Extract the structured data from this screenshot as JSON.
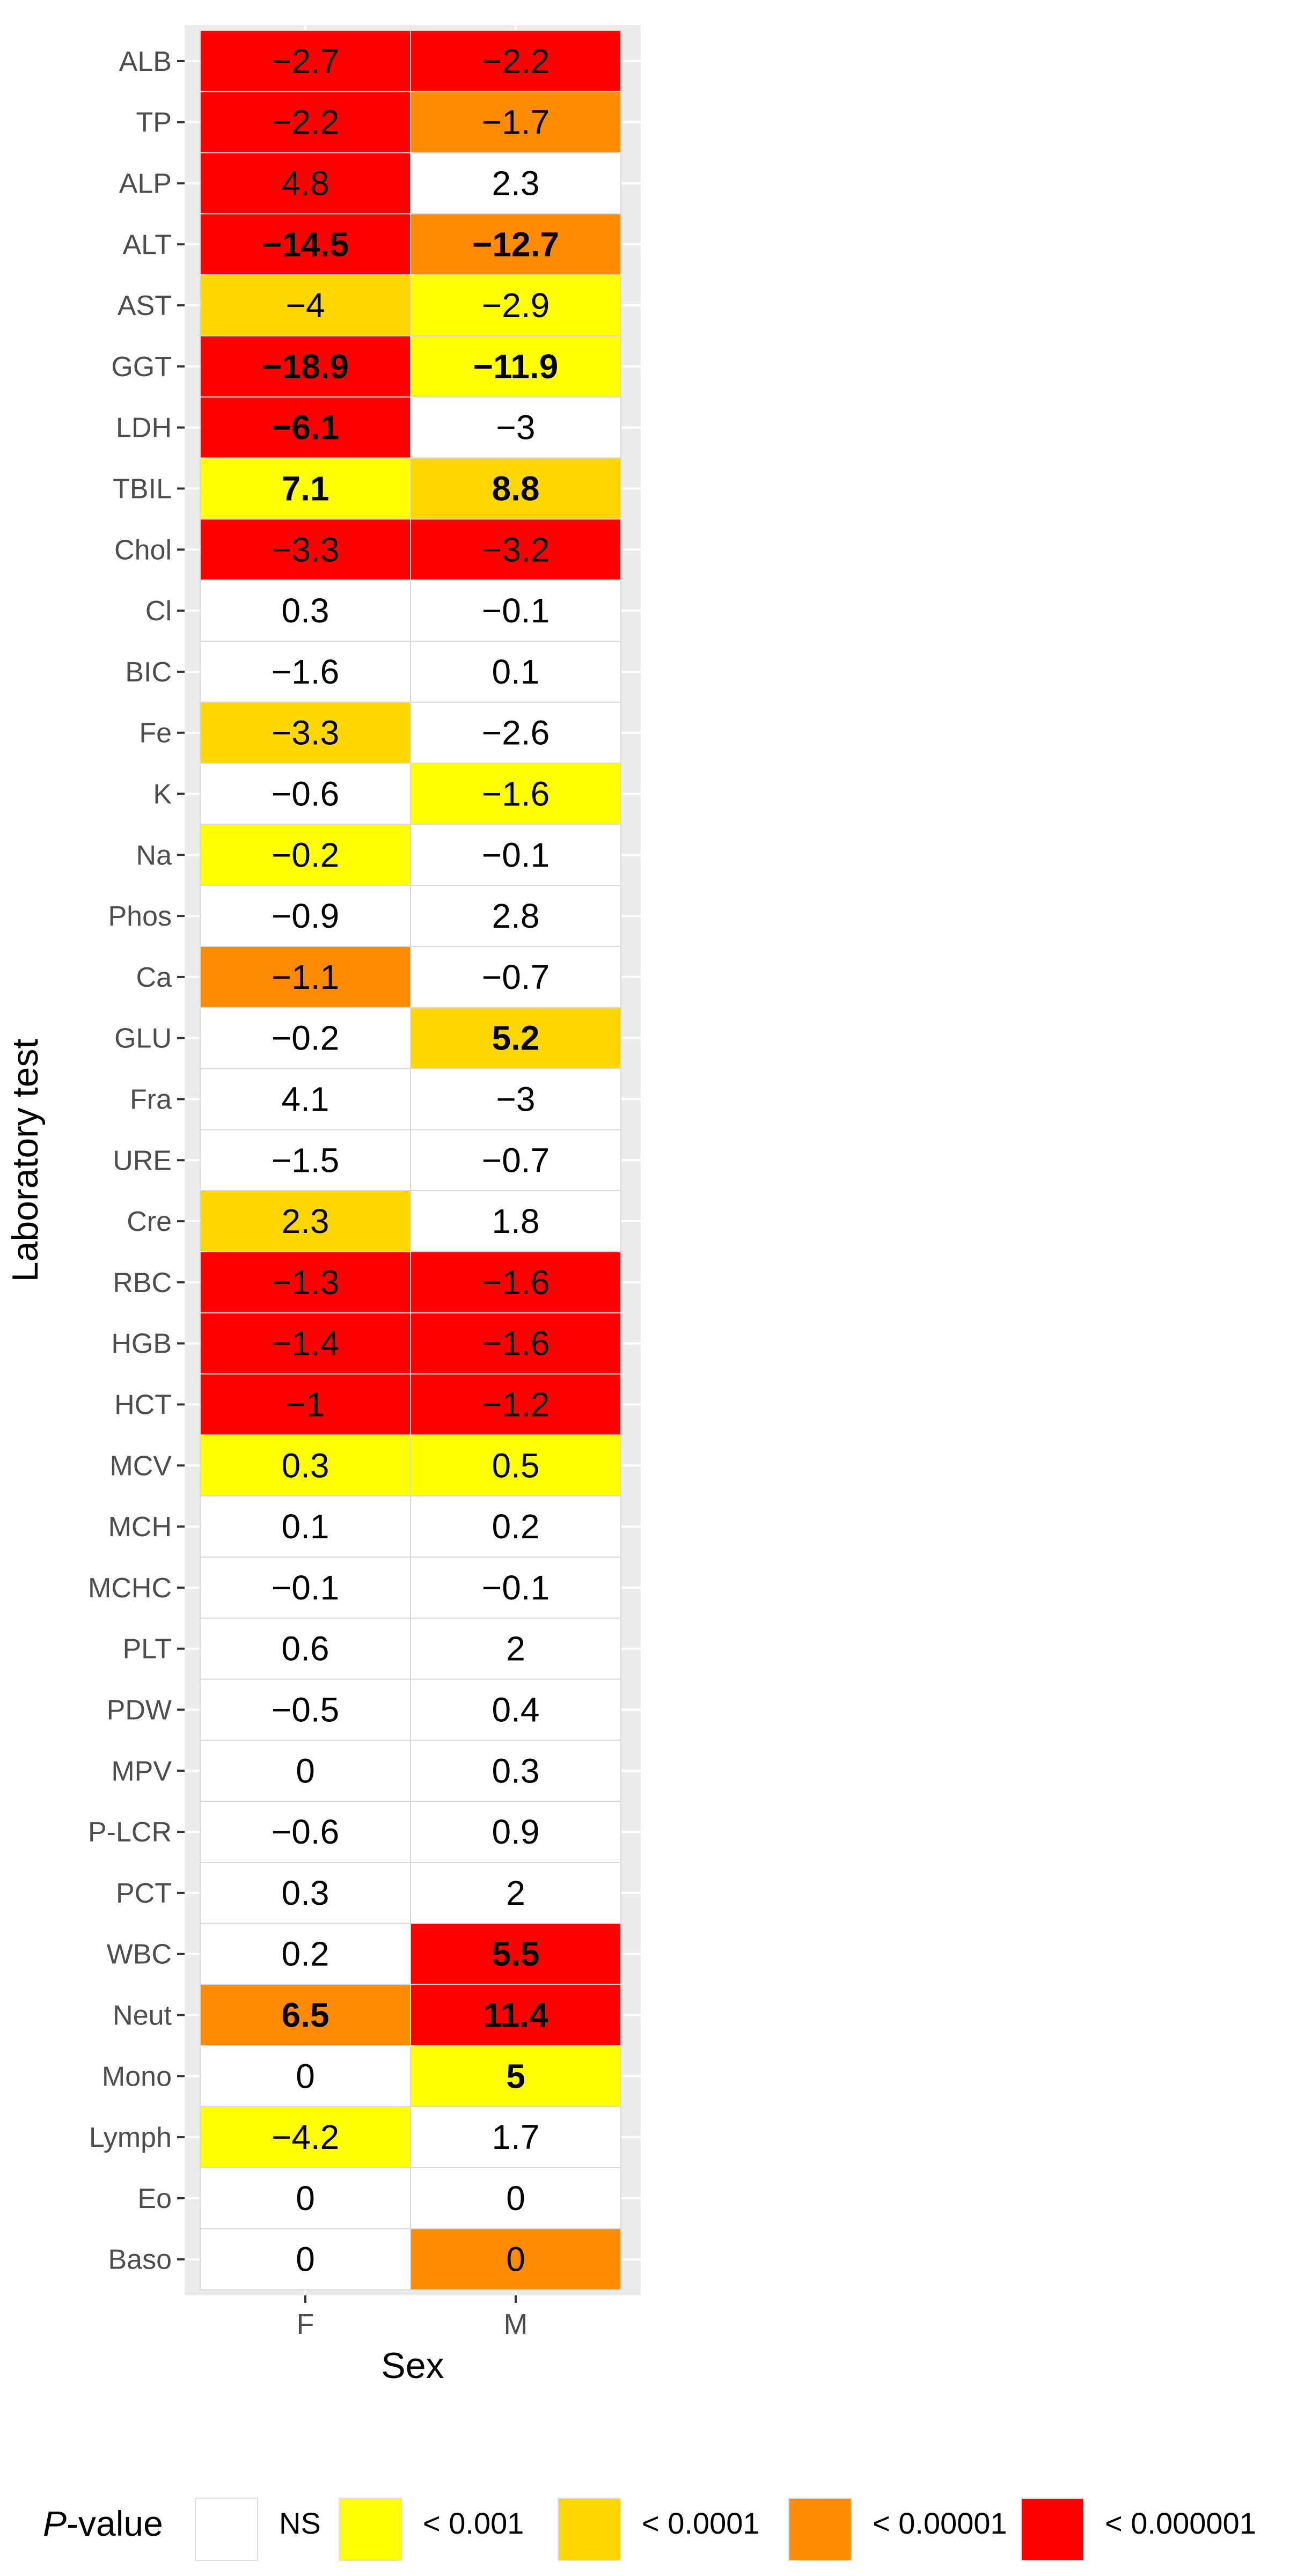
{
  "chart_data": {
    "type": "heatmap",
    "xlabel": "Sex",
    "ylabel": "Laboratory test",
    "x_categories": [
      "F",
      "M"
    ],
    "y_categories": [
      "ALB",
      "TP",
      "ALP",
      "ALT",
      "AST",
      "GGT",
      "LDH",
      "TBIL",
      "Chol",
      "Cl",
      "BIC",
      "Fe",
      "K",
      "Na",
      "Phos",
      "Ca",
      "GLU",
      "Fra",
      "URE",
      "Cre",
      "RBC",
      "HGB",
      "HCT",
      "MCV",
      "MCH",
      "MCHC",
      "PLT",
      "PDW",
      "MPV",
      "P-LCR",
      "PCT",
      "WBC",
      "Neut",
      "Mono",
      "Lymph",
      "Eo",
      "Baso"
    ],
    "cells": {
      "F": [
        {
          "text": "−2.7",
          "p": "< 0.000001",
          "bold": false
        },
        {
          "text": "−2.2",
          "p": "< 0.000001",
          "bold": false
        },
        {
          "text": "4.8",
          "p": "< 0.000001",
          "bold": false
        },
        {
          "text": "−14.5",
          "p": "< 0.000001",
          "bold": true
        },
        {
          "text": "−4",
          "p": "< 0.0001",
          "bold": false
        },
        {
          "text": "−18.9",
          "p": "< 0.000001",
          "bold": true
        },
        {
          "text": "−6.1",
          "p": "< 0.000001",
          "bold": true
        },
        {
          "text": "7.1",
          "p": "< 0.001",
          "bold": true
        },
        {
          "text": "−3.3",
          "p": "< 0.000001",
          "bold": false
        },
        {
          "text": "0.3",
          "p": "NS",
          "bold": false
        },
        {
          "text": "−1.6",
          "p": "NS",
          "bold": false
        },
        {
          "text": "−3.3",
          "p": "< 0.0001",
          "bold": false
        },
        {
          "text": "−0.6",
          "p": "NS",
          "bold": false
        },
        {
          "text": "−0.2",
          "p": "< 0.001",
          "bold": false
        },
        {
          "text": "−0.9",
          "p": "NS",
          "bold": false
        },
        {
          "text": "−1.1",
          "p": "< 0.00001",
          "bold": false
        },
        {
          "text": "−0.2",
          "p": "NS",
          "bold": false
        },
        {
          "text": "4.1",
          "p": "NS",
          "bold": false
        },
        {
          "text": "−1.5",
          "p": "NS",
          "bold": false
        },
        {
          "text": "2.3",
          "p": "< 0.0001",
          "bold": false
        },
        {
          "text": "−1.3",
          "p": "< 0.000001",
          "bold": false
        },
        {
          "text": "−1.4",
          "p": "< 0.000001",
          "bold": false
        },
        {
          "text": "−1",
          "p": "< 0.000001",
          "bold": false
        },
        {
          "text": "0.3",
          "p": "< 0.001",
          "bold": false
        },
        {
          "text": "0.1",
          "p": "NS",
          "bold": false
        },
        {
          "text": "−0.1",
          "p": "NS",
          "bold": false
        },
        {
          "text": "0.6",
          "p": "NS",
          "bold": false
        },
        {
          "text": "−0.5",
          "p": "NS",
          "bold": false
        },
        {
          "text": "0",
          "p": "NS",
          "bold": false
        },
        {
          "text": "−0.6",
          "p": "NS",
          "bold": false
        },
        {
          "text": "0.3",
          "p": "NS",
          "bold": false
        },
        {
          "text": "0.2",
          "p": "NS",
          "bold": false
        },
        {
          "text": "6.5",
          "p": "< 0.00001",
          "bold": true
        },
        {
          "text": "0",
          "p": "NS",
          "bold": false
        },
        {
          "text": "−4.2",
          "p": "< 0.001",
          "bold": false
        },
        {
          "text": "0",
          "p": "NS",
          "bold": false
        },
        {
          "text": "0",
          "p": "NS",
          "bold": false
        }
      ],
      "M": [
        {
          "text": "−2.2",
          "p": "< 0.000001",
          "bold": false
        },
        {
          "text": "−1.7",
          "p": "< 0.00001",
          "bold": false
        },
        {
          "text": "2.3",
          "p": "NS",
          "bold": false
        },
        {
          "text": "−12.7",
          "p": "< 0.00001",
          "bold": true
        },
        {
          "text": "−2.9",
          "p": "< 0.001",
          "bold": false
        },
        {
          "text": "−11.9",
          "p": "< 0.001",
          "bold": true
        },
        {
          "text": "−3",
          "p": "NS",
          "bold": false
        },
        {
          "text": "8.8",
          "p": "< 0.0001",
          "bold": true
        },
        {
          "text": "−3.2",
          "p": "< 0.000001",
          "bold": false
        },
        {
          "text": "−0.1",
          "p": "NS",
          "bold": false
        },
        {
          "text": "0.1",
          "p": "NS",
          "bold": false
        },
        {
          "text": "−2.6",
          "p": "NS",
          "bold": false
        },
        {
          "text": "−1.6",
          "p": "< 0.001",
          "bold": false
        },
        {
          "text": "−0.1",
          "p": "NS",
          "bold": false
        },
        {
          "text": "2.8",
          "p": "NS",
          "bold": false
        },
        {
          "text": "−0.7",
          "p": "NS",
          "bold": false
        },
        {
          "text": "5.2",
          "p": "< 0.0001",
          "bold": true
        },
        {
          "text": "−3",
          "p": "NS",
          "bold": false
        },
        {
          "text": "−0.7",
          "p": "NS",
          "bold": false
        },
        {
          "text": "1.8",
          "p": "NS",
          "bold": false
        },
        {
          "text": "−1.6",
          "p": "< 0.000001",
          "bold": false
        },
        {
          "text": "−1.6",
          "p": "< 0.000001",
          "bold": false
        },
        {
          "text": "−1.2",
          "p": "< 0.000001",
          "bold": false
        },
        {
          "text": "0.5",
          "p": "< 0.001",
          "bold": false
        },
        {
          "text": "0.2",
          "p": "NS",
          "bold": false
        },
        {
          "text": "−0.1",
          "p": "NS",
          "bold": false
        },
        {
          "text": "2",
          "p": "NS",
          "bold": false
        },
        {
          "text": "0.4",
          "p": "NS",
          "bold": false
        },
        {
          "text": "0.3",
          "p": "NS",
          "bold": false
        },
        {
          "text": "0.9",
          "p": "NS",
          "bold": false
        },
        {
          "text": "2",
          "p": "NS",
          "bold": false
        },
        {
          "text": "5.5",
          "p": "< 0.000001",
          "bold": true
        },
        {
          "text": "11.4",
          "p": "< 0.000001",
          "bold": true
        },
        {
          "text": "5",
          "p": "< 0.001",
          "bold": true
        },
        {
          "text": "1.7",
          "p": "NS",
          "bold": false
        },
        {
          "text": "0",
          "p": "NS",
          "bold": false
        },
        {
          "text": "0",
          "p": "< 0.00001",
          "bold": false
        }
      ]
    },
    "legend": {
      "title_italic": "P",
      "title_rest": "-value",
      "placement": "bottom",
      "items": [
        {
          "label": "NS",
          "color": "#ffffff"
        },
        {
          "label": "< 0.001",
          "color": "#ffff00"
        },
        {
          "label": "< 0.0001",
          "color": "#ffd700"
        },
        {
          "label": "< 0.00001",
          "color": "#ff8c00"
        },
        {
          "label": "< 0.000001",
          "color": "#ff0000"
        }
      ]
    },
    "colors": {
      "panel_background": "#ebebeb",
      "grid": "#ffffff",
      "cell_border": "#d9d9d9"
    }
  }
}
